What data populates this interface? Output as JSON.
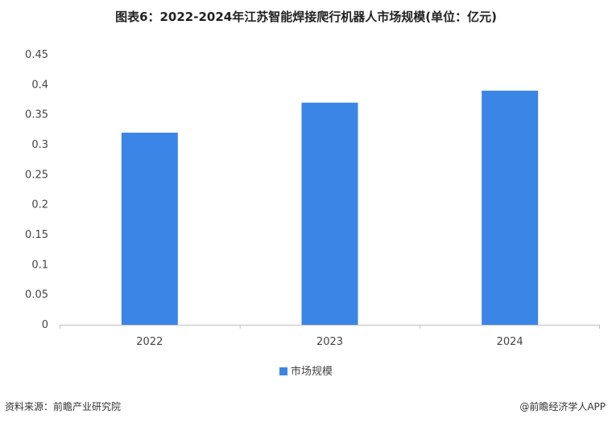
{
  "chart_data": {
    "type": "bar",
    "title": "图表6：2022-2024年江苏智能焊接爬行机器人市场规模(单位：亿元)",
    "categories": [
      "2022",
      "2023",
      "2024"
    ],
    "series": [
      {
        "name": "市场规模",
        "values": [
          0.32,
          0.37,
          0.39
        ]
      }
    ],
    "xlabel": "",
    "ylabel": "",
    "ylim": [
      0,
      0.45
    ],
    "yticks": [
      "0",
      "0.05",
      "0.1",
      "0.15",
      "0.2",
      "0.25",
      "0.3",
      "0.35",
      "0.4",
      "0.45"
    ],
    "grid": false,
    "legend": "bottom-center",
    "bar_color": "#3a85e6"
  },
  "footer": {
    "source": "资料来源：前瞻产业研究院",
    "brand": "@前瞻经济学人APP"
  }
}
